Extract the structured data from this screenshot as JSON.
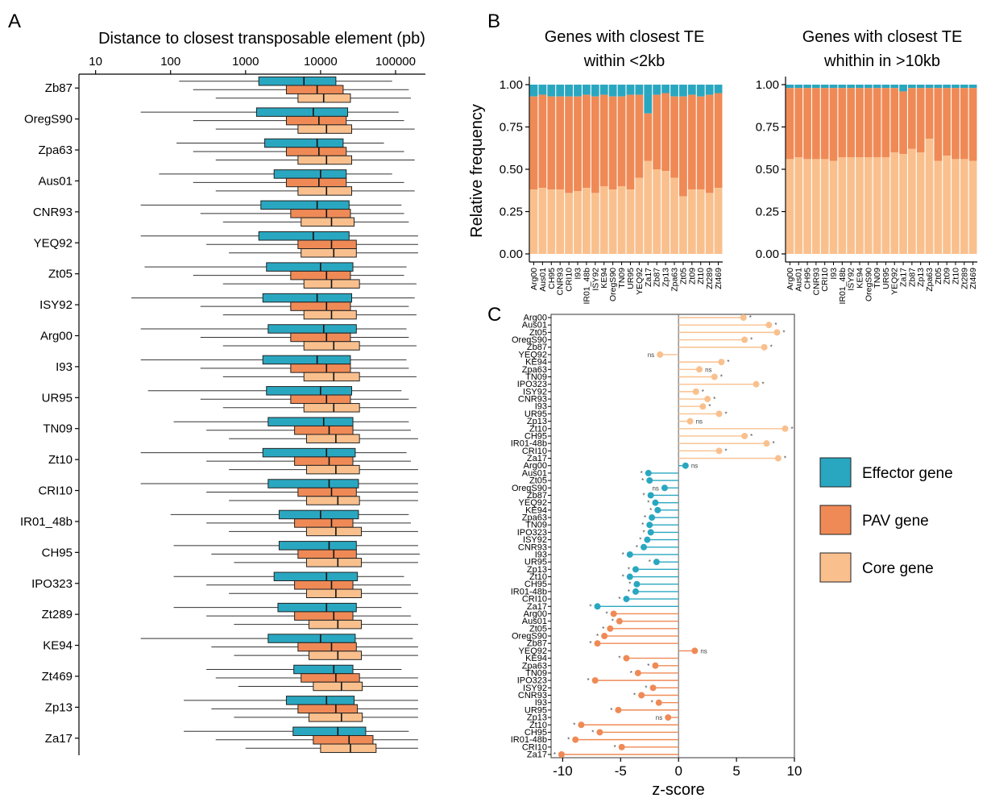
{
  "colors": {
    "effector": "#2aa7c0",
    "pav": "#ef8a56",
    "core": "#f9c08e",
    "axis": "#000000",
    "whisker": "#333333"
  },
  "legend": [
    {
      "key": "effector",
      "label": "Effector gene"
    },
    {
      "key": "pav",
      "label": "PAV gene"
    },
    {
      "key": "core",
      "label": "Core gene"
    }
  ],
  "chart_data": [
    {
      "panel": "A",
      "type": "boxplot",
      "title": "Distance to closest transposable element (pb)",
      "scale": "log10",
      "xlim": [
        6,
        250000
      ],
      "xticks": [
        10,
        100,
        1000,
        10000,
        100000
      ],
      "xtick_labels": [
        "10",
        "100",
        "1000",
        "10000",
        "100000"
      ],
      "series_order": [
        "effector",
        "pav",
        "core"
      ],
      "categories": [
        "Zb87",
        "OregS90",
        "Zpa63",
        "Aus01",
        "CNR93",
        "YEQ92",
        "Zt05",
        "ISY92",
        "Arg00",
        "I93",
        "UR95",
        "TN09",
        "Zt10",
        "CRI10",
        "IR01_48b",
        "CH95",
        "IPO323",
        "Zt289",
        "KE94",
        "Zt469",
        "Zp13",
        "Za17"
      ],
      "rows": [
        [
          [
            130,
            1500,
            6000,
            16000,
            90000
          ],
          [
            200,
            3500,
            9000,
            20000,
            150000
          ],
          [
            400,
            5000,
            11000,
            25000,
            160000
          ]
        ],
        [
          [
            40,
            1400,
            8000,
            23000,
            110000
          ],
          [
            200,
            3500,
            9500,
            22000,
            130000
          ],
          [
            400,
            5000,
            12000,
            26000,
            180000
          ]
        ],
        [
          [
            120,
            1800,
            9000,
            20000,
            70000
          ],
          [
            200,
            3500,
            9500,
            22000,
            130000
          ],
          [
            400,
            5000,
            12000,
            26000,
            180000
          ]
        ],
        [
          [
            70,
            2400,
            10000,
            22000,
            90000
          ],
          [
            200,
            3500,
            9500,
            22000,
            130000
          ],
          [
            400,
            5000,
            12000,
            26000,
            180000
          ]
        ],
        [
          [
            40,
            1600,
            9000,
            24000,
            120000
          ],
          [
            250,
            4000,
            12000,
            25000,
            130000
          ],
          [
            500,
            5500,
            14000,
            28000,
            150000
          ]
        ],
        [
          [
            40,
            1500,
            8000,
            24000,
            200000
          ],
          [
            300,
            5000,
            14000,
            30000,
            200000
          ],
          [
            600,
            5500,
            15000,
            30000,
            200000
          ]
        ],
        [
          [
            45,
            1900,
            10000,
            27000,
            140000
          ],
          [
            200,
            4000,
            12000,
            25000,
            130000
          ],
          [
            500,
            6000,
            14000,
            33000,
            190000
          ]
        ],
        [
          [
            30,
            1700,
            9000,
            26000,
            180000
          ],
          [
            250,
            4000,
            12000,
            25000,
            150000
          ],
          [
            500,
            6000,
            14000,
            30000,
            190000
          ]
        ],
        [
          [
            40,
            2000,
            11000,
            30000,
            140000
          ],
          [
            250,
            4000,
            12000,
            25000,
            150000
          ],
          [
            500,
            6000,
            15000,
            33000,
            190000
          ]
        ],
        [
          [
            40,
            1700,
            9000,
            25000,
            140000
          ],
          [
            250,
            4000,
            12000,
            25000,
            150000
          ],
          [
            500,
            6000,
            15000,
            33000,
            190000
          ]
        ],
        [
          [
            50,
            1900,
            10000,
            26000,
            120000
          ],
          [
            250,
            4000,
            12000,
            25000,
            150000
          ],
          [
            500,
            6000,
            15000,
            33000,
            190000
          ]
        ],
        [
          [
            110,
            2000,
            11000,
            27000,
            150000
          ],
          [
            300,
            4500,
            13000,
            27000,
            160000
          ],
          [
            600,
            6500,
            16000,
            33000,
            200000
          ]
        ],
        [
          [
            40,
            1700,
            12000,
            29000,
            140000
          ],
          [
            300,
            4500,
            13000,
            27000,
            160000
          ],
          [
            600,
            6500,
            16000,
            33000,
            200000
          ]
        ],
        [
          [
            40,
            2000,
            13000,
            32000,
            200000
          ],
          [
            300,
            5000,
            14000,
            30000,
            200000
          ],
          [
            600,
            6500,
            17000,
            33000,
            200000
          ]
        ],
        [
          [
            100,
            2800,
            10000,
            32000,
            150000
          ],
          [
            300,
            4500,
            14000,
            27000,
            160000
          ],
          [
            600,
            6500,
            16000,
            35000,
            200000
          ]
        ],
        [
          [
            110,
            2800,
            13000,
            30000,
            200000
          ],
          [
            350,
            5000,
            15000,
            30000,
            210000
          ],
          [
            700,
            6500,
            17000,
            35000,
            200000
          ]
        ],
        [
          [
            110,
            2400,
            12000,
            31000,
            130000
          ],
          [
            300,
            4500,
            14000,
            27000,
            160000
          ],
          [
            600,
            6500,
            16000,
            35000,
            200000
          ]
        ],
        [
          [
            110,
            2700,
            12000,
            30000,
            120000
          ],
          [
            300,
            4500,
            15000,
            27000,
            160000
          ],
          [
            700,
            7000,
            17000,
            35000,
            200000
          ]
        ],
        [
          [
            40,
            2000,
            10000,
            29000,
            170000
          ],
          [
            350,
            5000,
            14000,
            30000,
            200000
          ],
          [
            700,
            7000,
            17000,
            35000,
            200000
          ]
        ],
        [
          [
            300,
            4400,
            15000,
            27000,
            120000
          ],
          [
            400,
            5500,
            16000,
            33000,
            200000
          ],
          [
            800,
            8000,
            19000,
            36000,
            200000
          ]
        ],
        [
          [
            150,
            3500,
            12000,
            28000,
            200000
          ],
          [
            350,
            5000,
            16000,
            31000,
            200000
          ],
          [
            700,
            7000,
            19000,
            36000,
            200000
          ]
        ],
        [
          [
            150,
            4300,
            17000,
            40000,
            150000
          ],
          [
            400,
            8000,
            24000,
            50000,
            200000
          ],
          [
            1000,
            10000,
            25000,
            55000,
            200000
          ]
        ]
      ]
    },
    {
      "panel": "B",
      "type": "stacked-bar",
      "title_left_line1": "Genes with closest TE",
      "title_left_line2": "within <2kb",
      "title_right_line1": "Genes with closest TE",
      "title_right_line2": "whithin in >10kb",
      "ylabel": "Relative frequency",
      "ylim": [
        0,
        1
      ],
      "yticks": [
        "0.00",
        "0.25",
        "0.50",
        "0.75",
        "1.00"
      ],
      "categories": [
        "Arg00",
        "Aus01",
        "CH95",
        "CNR93",
        "CRI10",
        "I93",
        "IR01_48b",
        "ISY92",
        "KE94",
        "OregS90",
        "TN09",
        "UR95",
        "YEQ92",
        "Za17",
        "Zb87",
        "Zp13",
        "Zpa63",
        "Zt05",
        "Zt09",
        "Zt10",
        "Zt289",
        "Zt469"
      ],
      "left": {
        "core": [
          0.38,
          0.39,
          0.38,
          0.38,
          0.36,
          0.37,
          0.39,
          0.36,
          0.4,
          0.38,
          0.4,
          0.38,
          0.45,
          0.55,
          0.5,
          0.49,
          0.45,
          0.34,
          0.38,
          0.38,
          0.36,
          0.39
        ],
        "pav_top": [
          0.93,
          0.94,
          0.93,
          0.93,
          0.93,
          0.93,
          0.94,
          0.93,
          0.94,
          0.93,
          0.93,
          0.94,
          0.94,
          0.83,
          0.94,
          0.95,
          0.93,
          0.93,
          0.94,
          0.93,
          0.94,
          0.95
        ]
      },
      "right": {
        "core": [
          0.56,
          0.57,
          0.56,
          0.56,
          0.56,
          0.55,
          0.57,
          0.57,
          0.57,
          0.57,
          0.57,
          0.57,
          0.6,
          0.59,
          0.62,
          0.6,
          0.68,
          0.55,
          0.58,
          0.56,
          0.56,
          0.55
        ],
        "pav_top": [
          0.98,
          0.98,
          0.98,
          0.98,
          0.98,
          0.98,
          0.98,
          0.98,
          0.98,
          0.98,
          0.98,
          0.98,
          0.98,
          0.96,
          0.98,
          0.98,
          0.98,
          0.98,
          0.98,
          0.98,
          0.98,
          0.98
        ]
      }
    },
    {
      "panel": "C",
      "type": "lollipop",
      "xlabel": "z-score",
      "xlim": [
        -11,
        10
      ],
      "xticks": [
        -10,
        -5,
        0,
        5,
        10
      ],
      "xtick_labels": [
        "-10",
        "-5",
        "0",
        "5",
        "10"
      ],
      "categories": [
        "Arg00",
        "Aus01",
        "Zt05",
        "OregS90",
        "Zb87",
        "YEQ92",
        "KE94",
        "Zpa63",
        "TN09",
        "IPO323",
        "ISY92",
        "CNR93",
        "I93",
        "UR95",
        "Zp13",
        "Zt10",
        "CH95",
        "IR01-48b",
        "CRI10",
        "Za17"
      ],
      "groups": [
        {
          "key": "core",
          "values": [
            5.6,
            7.8,
            8.5,
            5.7,
            7.4,
            -1.6,
            3.7,
            1.8,
            3.1,
            6.7,
            1.5,
            2.5,
            2.1,
            3.5,
            1.0,
            9.2,
            5.7,
            7.6,
            3.5,
            8.6
          ],
          "sig": [
            "*",
            "*",
            "*",
            "*",
            "*",
            "ns",
            "*",
            "ns",
            "*",
            "*",
            "*",
            "*",
            "*",
            "*",
            "ns",
            "*",
            "*",
            "*",
            "*",
            "*"
          ]
        },
        {
          "key": "effector",
          "values": [
            0.6,
            -2.6,
            -2.5,
            -1.2,
            -2.4,
            -2.0,
            -1.8,
            -2.3,
            -2.5,
            -2.4,
            -2.7,
            -3.0,
            -4.2,
            -1.9,
            -3.7,
            -4.2,
            -3.6,
            -3.7,
            -4.5,
            -7.0
          ],
          "sig": [
            "ns",
            "*",
            "*",
            "ns",
            "*",
            "*",
            "*",
            "*",
            "*",
            "*",
            "*",
            "*",
            "*",
            "*",
            "*",
            "*",
            "*",
            "*",
            "*",
            "*"
          ]
        },
        {
          "key": "pav",
          "values": [
            -5.6,
            -5.1,
            -5.9,
            -6.4,
            -7.0,
            1.4,
            -4.5,
            -2.0,
            -3.5,
            -7.2,
            -2.2,
            -3.2,
            -1.7,
            -5.2,
            -0.9,
            -8.4,
            -6.8,
            -8.9,
            -4.9,
            -10.1
          ],
          "sig": [
            "*",
            "*",
            "*",
            "*",
            "*",
            "ns",
            "*",
            "*",
            "*",
            "*",
            "*",
            "*",
            "*",
            "*",
            "ns",
            "*",
            "*",
            "*",
            "*",
            "*"
          ]
        }
      ]
    }
  ]
}
